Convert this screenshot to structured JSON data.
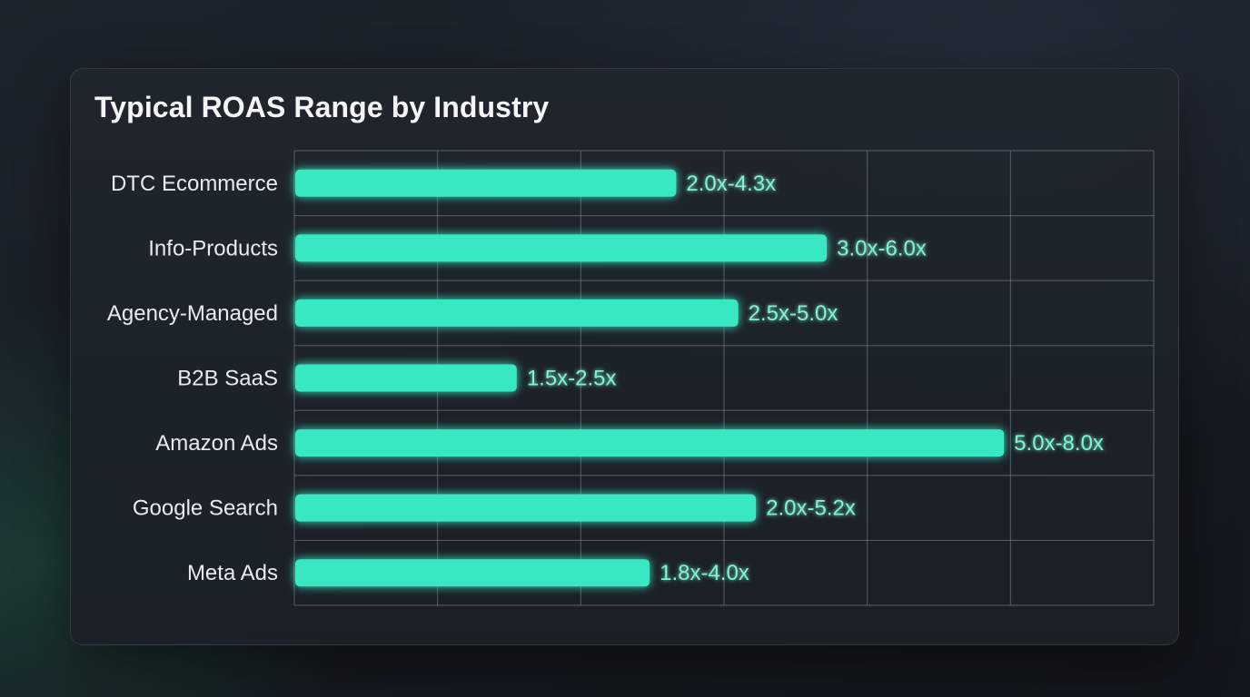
{
  "chart_data": {
    "type": "bar",
    "title": "Typical ROAS Range by Industry",
    "xlabel": "",
    "ylabel": "",
    "orientation": "horizontal",
    "categories": [
      "DTC Ecommerce",
      "Info-Products",
      "Agency-Managed",
      "B2B SaaS",
      "Amazon Ads",
      "Google Search",
      "Meta Ads"
    ],
    "values": [
      4.3,
      6.0,
      5.0,
      2.5,
      8.0,
      5.2,
      4.0
    ],
    "value_labels": [
      "2.0x-4.3x",
      "3.0x-6.0x",
      "2.5x-5.0x",
      "1.5x-2.5x",
      "5.0x-8.0x",
      "2.0x-5.2x",
      "1.8x-4.0x"
    ],
    "xlim": [
      0,
      9.7
    ],
    "grid": true,
    "bar_color": "#38e8c2",
    "grid_color": "#8a9099"
  }
}
